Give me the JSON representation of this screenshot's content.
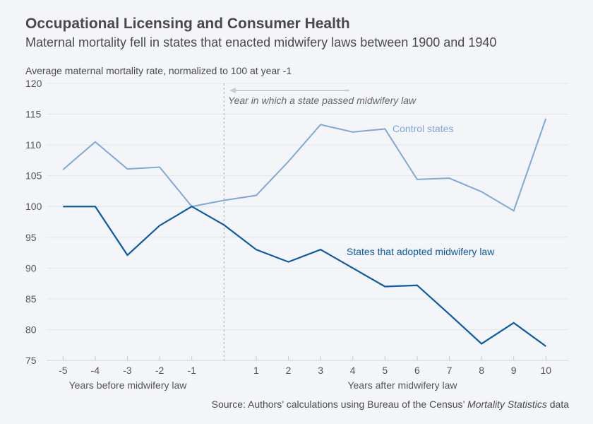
{
  "chart_data": {
    "type": "line",
    "title": "Occupational Licensing and Consumer Health",
    "subtitle": "Maternal mortality fell in states that enacted midwifery laws between 1900 and 1940",
    "ylabel": "Average maternal mortality rate, normalized to 100 at year -1",
    "ylim": [
      75,
      120
    ],
    "yticks": [
      75,
      80,
      85,
      90,
      95,
      100,
      105,
      110,
      115,
      120
    ],
    "x": [
      -5,
      -4,
      -3,
      -2,
      -1,
      0,
      1,
      2,
      3,
      4,
      5,
      6,
      7,
      8,
      9,
      10
    ],
    "xtick_labels": [
      "-5",
      "-4",
      "-3",
      "-2",
      "-1",
      "1",
      "2",
      "3",
      "4",
      "5",
      "6",
      "7",
      "8",
      "9",
      "10"
    ],
    "xtick_values": [
      -5,
      -4,
      -3,
      -2,
      -1,
      1,
      2,
      3,
      4,
      5,
      6,
      7,
      8,
      9,
      10
    ],
    "xlabel_before": "Years before midwifery law",
    "xlabel_after": "Years after midwifery law",
    "grid": true,
    "series": [
      {
        "name": "Control states",
        "color": "#7ea8d8",
        "values": [
          106,
          110.5,
          106.1,
          106.4,
          100,
          101,
          101.8,
          107.3,
          113.3,
          112.1,
          112.6,
          104.4,
          104.6,
          102.4,
          99.3,
          114.3
        ]
      },
      {
        "name": "States that adopted midwifery law",
        "color": "#0b5aa6",
        "values": [
          100,
          100,
          92.1,
          96.9,
          100,
          97,
          93,
          91,
          93,
          90,
          87,
          87.2,
          82.5,
          77.7,
          81.1,
          77.3
        ]
      }
    ],
    "annotation": {
      "x": 0,
      "text": "Year in which a state passed midwifery law"
    }
  },
  "source": {
    "prefix": "Source: Authors’ calculations using Bureau of the Census’ ",
    "italic": "Mortality Statistics",
    "suffix": " data"
  }
}
